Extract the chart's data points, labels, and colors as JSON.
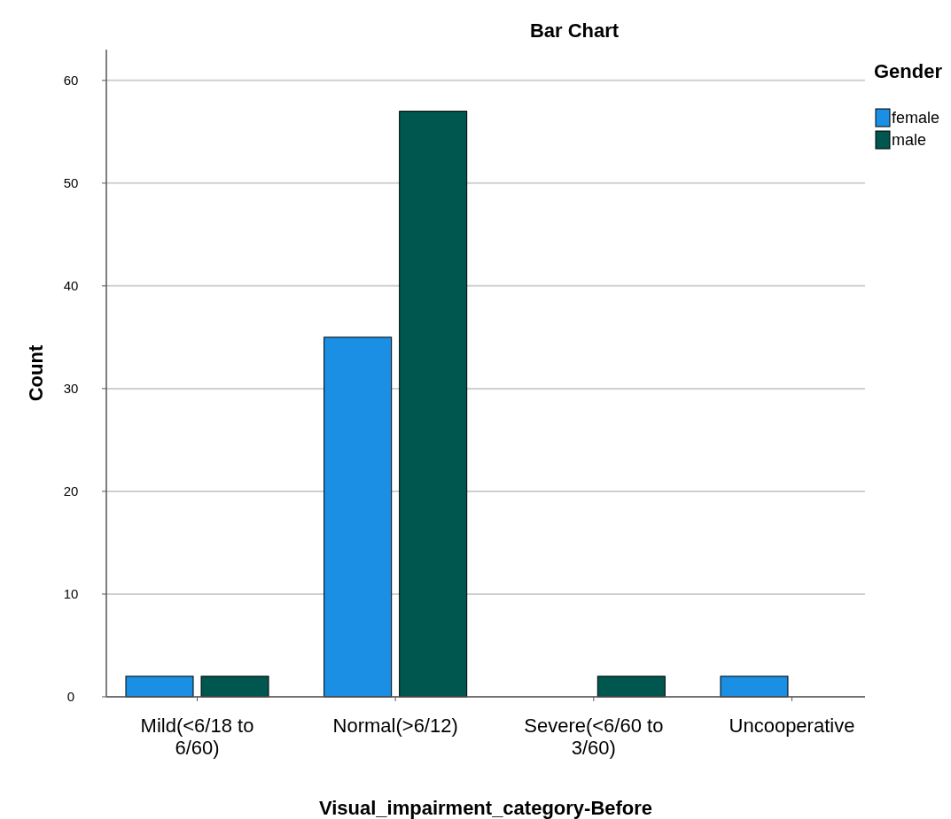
{
  "chart_data": {
    "type": "bar",
    "title": "Bar Chart",
    "xlabel": "Visual_impairment_category-Before",
    "ylabel": "Count",
    "legend_title": "Gender",
    "categories": [
      "Mild(<6/18 to 6/60)",
      "Normal(>6/12)",
      "Severe(<6/60 to 3/60)",
      "Uncooperative"
    ],
    "series": [
      {
        "name": "female",
        "color": "#1a8fe3",
        "values": [
          2,
          35,
          null,
          2
        ]
      },
      {
        "name": "male",
        "color": "#00574f",
        "values": [
          2,
          57,
          2,
          null
        ]
      }
    ],
    "ylim": [
      0,
      63
    ],
    "yticks": [
      0,
      10,
      20,
      30,
      40,
      50,
      60
    ],
    "grid": "y",
    "legend": "top right"
  }
}
